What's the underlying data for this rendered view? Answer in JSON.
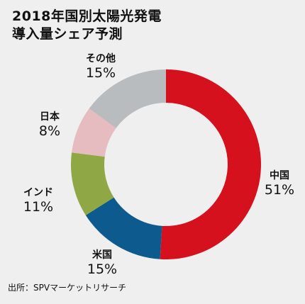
{
  "title": {
    "line1": "2018年国別太陽光発電",
    "line2": "導入量シェア予測"
  },
  "source": "出所：SPVマーケットリサーチ",
  "chart_data": {
    "type": "pie",
    "donut": true,
    "title": "2018年国別太陽光発電導入量シェア予測",
    "unit": "%",
    "slices": [
      {
        "label": "中国",
        "value": 51,
        "display": "51%",
        "color": "#d6111e"
      },
      {
        "label": "米国",
        "value": 15,
        "display": "15%",
        "color": "#0d5a8f"
      },
      {
        "label": "インド",
        "value": 11,
        "display": "11%",
        "color": "#8fa845"
      },
      {
        "label": "日本",
        "value": 8,
        "display": "8%",
        "color": "#e6bcc0"
      },
      {
        "label": "その他",
        "value": 15,
        "display": "15%",
        "color": "#b9bcbf"
      }
    ],
    "start_angle_deg": 0,
    "direction": "clockwise",
    "legend": "none"
  }
}
